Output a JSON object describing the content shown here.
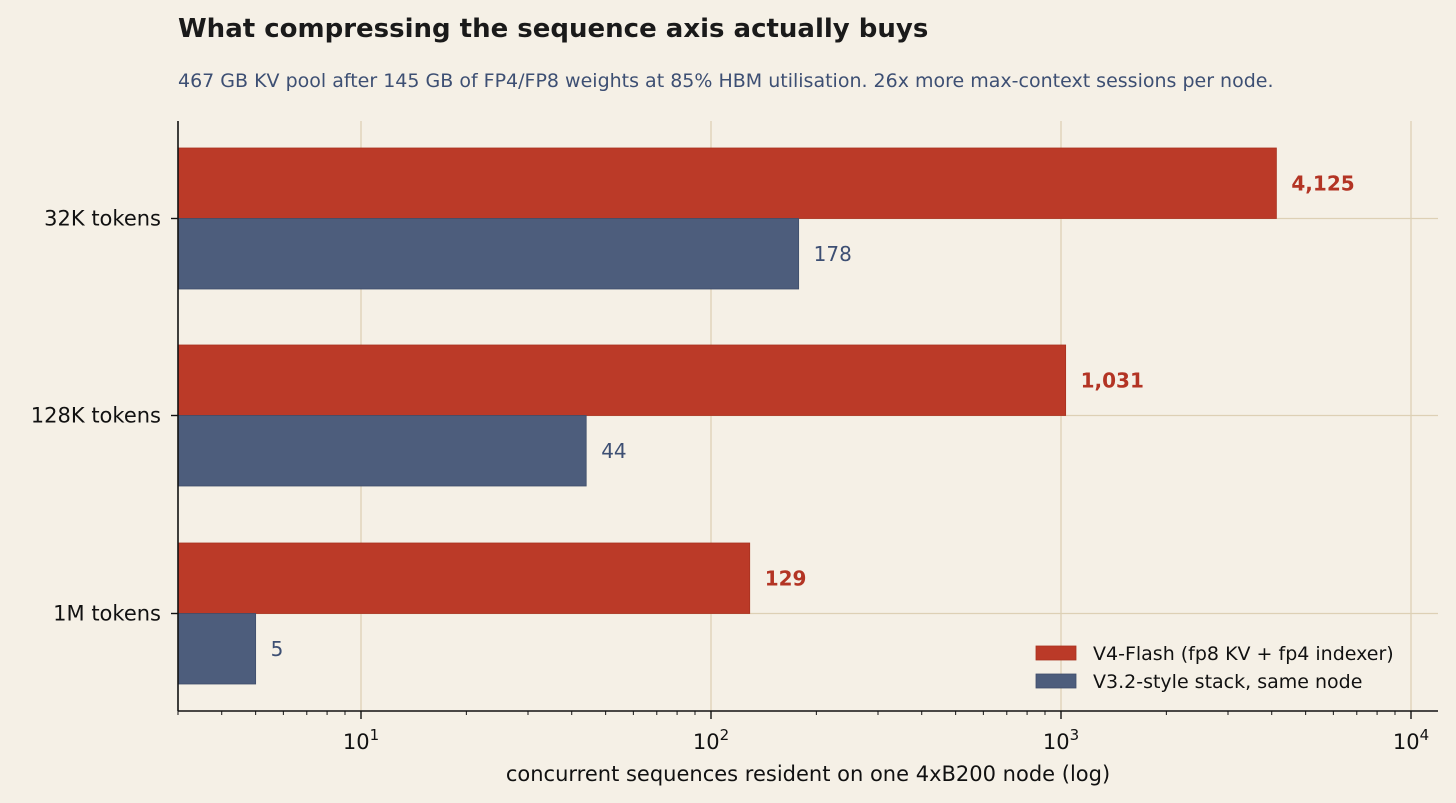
{
  "chart_data": {
    "type": "bar",
    "orientation": "horizontal",
    "title": "What compressing the sequence axis actually buys",
    "subtitle": "467 GB KV pool after 145 GB of FP4/FP8 weights at 85% HBM utilisation. 26x more max-context sessions per node.",
    "categories": [
      "32K tokens",
      "128K tokens",
      "1M tokens"
    ],
    "series": [
      {
        "name": "V4-Flash (fp8 KV + fp4 indexer)",
        "values": [
          4125,
          1031,
          129
        ],
        "labels": [
          "4,125",
          "1,031",
          "129"
        ],
        "color": "#bb3a28"
      },
      {
        "name": "V3.2-style stack, same node",
        "values": [
          178,
          44,
          5
        ],
        "labels": [
          "178",
          "44",
          "5"
        ],
        "color": "#4d5d7c"
      }
    ],
    "xlabel": "concurrent sequences resident on one 4xB200 node (log)",
    "xscale": "log",
    "xlim": [
      3,
      12000
    ],
    "xticks": [
      10,
      100,
      1000,
      10000
    ],
    "grid": true,
    "legend_position": "lower-right"
  }
}
